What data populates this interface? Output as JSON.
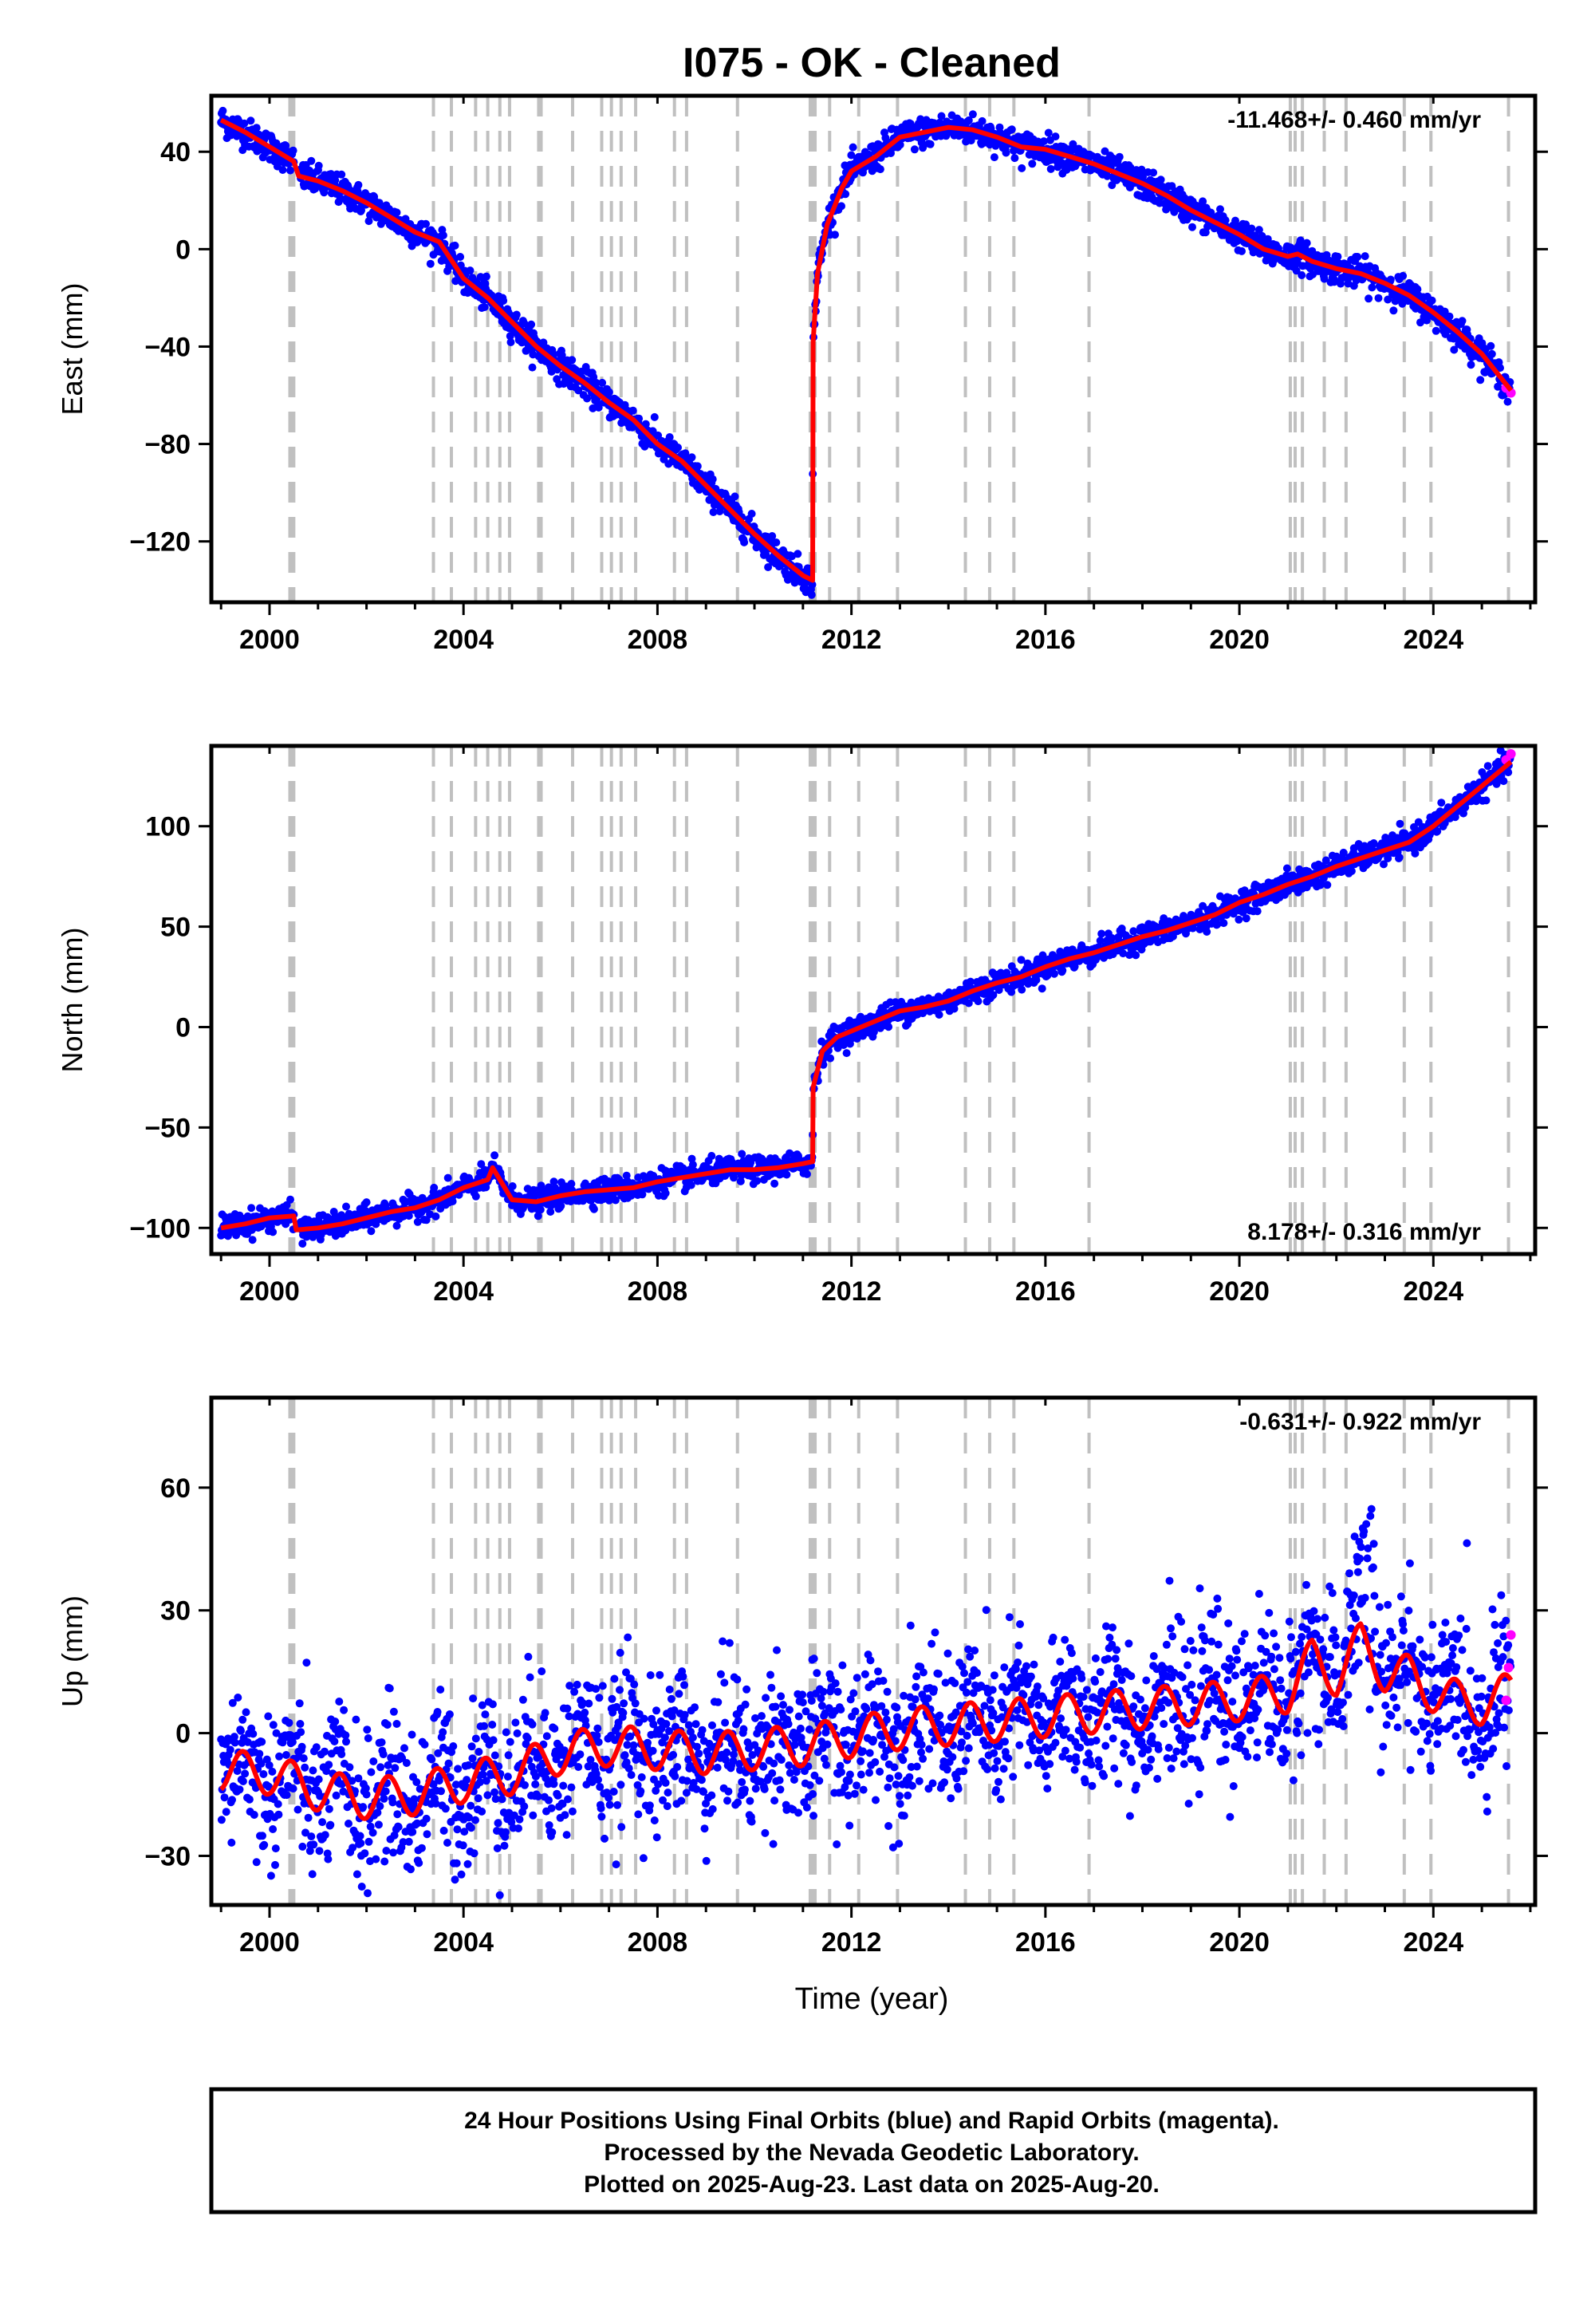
{
  "title": "I075  - OK - Cleaned",
  "x_axis_label": "Time (year)",
  "footer": [
    "24 Hour Positions Using Final Orbits (blue) and Rapid Orbits (magenta).",
    "Processed by the Nevada Geodetic Laboratory.",
    "Plotted on 2025-Aug-23. Last data on 2025-Aug-20."
  ],
  "colors": {
    "final_orbits": "#0000ff",
    "rapid_orbits": "#ff00ff",
    "model": "#ff0000",
    "event_lines": "#c0c0c0",
    "frame": "#000000"
  },
  "chart_data": [
    {
      "type": "scatter",
      "component": "east",
      "ylabel": "East (mm)",
      "rate_label": "-11.468+/- 0.460 mm/yr",
      "rate_position": "top-right",
      "xlim": [
        1998.8,
        2026.1
      ],
      "ylim": [
        -145,
        63
      ],
      "x_ticks": [
        2000,
        2004,
        2008,
        2012,
        2016,
        2020,
        2024
      ],
      "y_ticks": [
        -120,
        -80,
        -40,
        0,
        40
      ],
      "grid": false,
      "series": [
        {
          "name": "Final Orbits",
          "color": "#0000ff",
          "noise": 3
        },
        {
          "name": "Rapid Orbits",
          "color": "#ff00ff",
          "x": [
            2025.5,
            2025.6
          ],
          "y": [
            -57,
            -59
          ]
        },
        {
          "name": "Model",
          "color": "#ff0000",
          "x": [
            1999.0,
            1999.5,
            2000.0,
            2000.5,
            2000.6,
            2001.0,
            2001.5,
            2002.0,
            2002.5,
            2003.0,
            2003.5,
            2004.0,
            2004.5,
            2005.0,
            2005.5,
            2006.0,
            2006.5,
            2007.0,
            2007.5,
            2008.0,
            2008.5,
            2009.0,
            2009.5,
            2010.0,
            2010.5,
            2011.0,
            2011.2,
            2011.21,
            2011.3,
            2011.5,
            2011.8,
            2012.0,
            2012.5,
            2013.0,
            2013.5,
            2014.0,
            2014.5,
            2015.0,
            2015.5,
            2016.0,
            2016.5,
            2017.0,
            2017.5,
            2018.0,
            2018.5,
            2019.0,
            2019.5,
            2020.0,
            2020.5,
            2021.0,
            2021.2,
            2021.5,
            2022.0,
            2022.5,
            2023.0,
            2023.5,
            2024.0,
            2024.5,
            2025.0,
            2025.6
          ],
          "y": [
            53,
            48,
            42,
            36,
            30,
            28,
            24,
            19,
            13,
            7,
            3,
            -12,
            -20,
            -30,
            -40,
            -48,
            -55,
            -63,
            -70,
            -80,
            -87,
            -97,
            -107,
            -117,
            -126,
            -134,
            -136,
            -38,
            -10,
            10,
            25,
            32,
            38,
            46,
            48,
            50,
            49,
            46,
            42,
            41,
            38,
            35,
            31,
            27,
            22,
            16,
            11,
            6,
            0,
            -3,
            -2,
            -5,
            -8,
            -10,
            -14,
            -19,
            -26,
            -34,
            -43,
            -58
          ]
        }
      ]
    },
    {
      "type": "scatter",
      "component": "north",
      "ylabel": "North (mm)",
      "rate_label": "8.178+/- 0.316 mm/yr",
      "rate_position": "bottom-right",
      "xlim": [
        1998.8,
        2026.1
      ],
      "ylim": [
        -113,
        140
      ],
      "x_ticks": [
        2000,
        2004,
        2008,
        2012,
        2016,
        2020,
        2024
      ],
      "y_ticks": [
        -100,
        -50,
        0,
        50,
        100
      ],
      "grid": false,
      "series": [
        {
          "name": "Final Orbits",
          "color": "#0000ff",
          "noise": 3
        },
        {
          "name": "Rapid Orbits",
          "color": "#ff00ff",
          "x": [
            2025.5,
            2025.6
          ],
          "y": [
            133,
            136
          ]
        },
        {
          "name": "Model",
          "color": "#ff0000",
          "x": [
            1999.0,
            1999.5,
            2000.0,
            2000.5,
            2000.55,
            2001.0,
            2001.5,
            2002.0,
            2002.5,
            2003.0,
            2003.5,
            2004.0,
            2004.5,
            2004.6,
            2005.0,
            2005.5,
            2006.0,
            2006.5,
            2007.0,
            2007.5,
            2008.0,
            2008.5,
            2009.0,
            2009.5,
            2010.0,
            2010.5,
            2011.0,
            2011.2,
            2011.21,
            2011.4,
            2011.7,
            2012.0,
            2012.5,
            2013.0,
            2013.5,
            2014.0,
            2014.5,
            2015.0,
            2015.5,
            2016.0,
            2016.5,
            2017.0,
            2017.5,
            2018.0,
            2018.5,
            2019.0,
            2019.5,
            2020.0,
            2020.5,
            2021.0,
            2021.5,
            2022.0,
            2022.5,
            2023.0,
            2023.5,
            2024.0,
            2024.5,
            2025.0,
            2025.6
          ],
          "y": [
            -100,
            -98,
            -95,
            -94,
            -101,
            -100,
            -98,
            -95,
            -92,
            -90,
            -86,
            -80,
            -76,
            -70,
            -86,
            -87,
            -84,
            -82,
            -81,
            -80,
            -77,
            -75,
            -73,
            -71,
            -71,
            -70,
            -68,
            -67,
            -30,
            -12,
            -5,
            -2,
            3,
            8,
            10,
            13,
            18,
            22,
            25,
            30,
            34,
            37,
            41,
            45,
            48,
            52,
            56,
            62,
            66,
            71,
            75,
            80,
            84,
            88,
            92,
            100,
            110,
            120,
            132
          ]
        }
      ]
    },
    {
      "type": "scatter",
      "component": "up",
      "ylabel": "Up (mm)",
      "rate_label": "-0.631+/- 0.922 mm/yr",
      "rate_position": "top-right",
      "xlim": [
        1998.8,
        2026.1
      ],
      "ylim": [
        -42,
        82
      ],
      "x_ticks": [
        2000,
        2004,
        2008,
        2012,
        2016,
        2020,
        2024
      ],
      "y_ticks": [
        -30,
        0,
        30,
        60
      ],
      "grid": false,
      "series": [
        {
          "name": "Final Orbits",
          "color": "#0000ff",
          "noise": 9
        },
        {
          "name": "Rapid Orbits",
          "color": "#ff00ff",
          "x": [
            2025.5,
            2025.55,
            2025.6
          ],
          "y": [
            8,
            16,
            24
          ]
        },
        {
          "name": "Model",
          "color": "#ff0000",
          "x": [
            1999.0,
            2000.0,
            2001.0,
            2002.0,
            2003.0,
            2004.0,
            2005.0,
            2006.0,
            2007.0,
            2008.0,
            2009.0,
            2010.0,
            2011.0,
            2012.0,
            2013.0,
            2014.0,
            2015.0,
            2016.0,
            2017.0,
            2018.0,
            2019.0,
            2020.0,
            2021.0,
            2021.5,
            2022.0,
            2022.5,
            2023.0,
            2023.5,
            2024.0,
            2024.5,
            2025.0,
            2025.6
          ],
          "y": [
            -9,
            -10,
            -14,
            -16,
            -15,
            -12,
            -10,
            -5,
            -3,
            -4,
            -5,
            -4,
            -3,
            -1,
            1,
            2,
            3,
            4,
            5,
            6,
            7,
            8,
            10,
            18,
            14,
            22,
            15,
            14,
            10,
            8,
            7,
            10
          ],
          "seasonal_amplitude_mm": 5
        }
      ]
    }
  ],
  "event_lines": [
    2000.42,
    2000.46,
    2000.5,
    2003.38,
    2003.75,
    2004.25,
    2004.5,
    2004.75,
    2004.95,
    2005.55,
    2005.6,
    2006.25,
    2006.85,
    2007.05,
    2007.25,
    2007.55,
    2008.35,
    2008.6,
    2009.65,
    2011.15,
    2011.2,
    2011.25,
    2011.55,
    2012.15,
    2012.95,
    2014.35,
    2014.85,
    2015.35,
    2016.9,
    2021.05,
    2021.15,
    2021.3,
    2021.75,
    2022.2,
    2023.4,
    2023.95,
    2025.55
  ]
}
